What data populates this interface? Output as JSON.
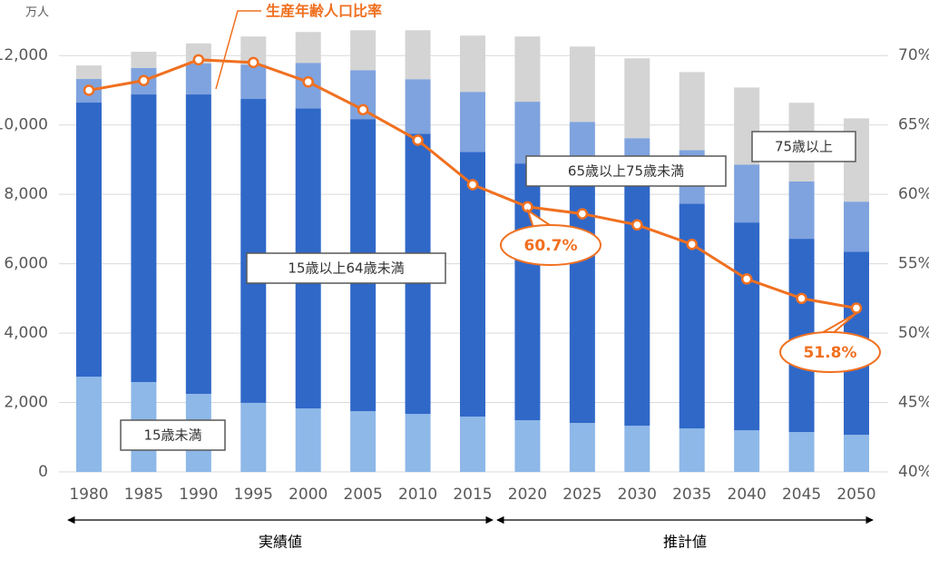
{
  "chart_data": {
    "type": "bar",
    "y_label": "万人",
    "categories": [
      "1980",
      "1985",
      "1990",
      "1995",
      "2000",
      "2005",
      "2010",
      "2015",
      "2020",
      "2025",
      "2030",
      "2035",
      "2040",
      "2045",
      "2050"
    ],
    "series": [
      {
        "name": "15歳未満",
        "color": "#8db8e8",
        "values": [
          2745,
          2590,
          2250,
          1990,
          1830,
          1750,
          1670,
          1595,
          1490,
          1410,
          1330,
          1255,
          1200,
          1150,
          1070
        ]
      },
      {
        "name": "15歳以上64歳未満",
        "color": "#3068c8",
        "values": [
          7900,
          8290,
          8630,
          8760,
          8650,
          8420,
          8080,
          7630,
          7400,
          7140,
          7030,
          6480,
          5990,
          5570,
          5280
        ]
      },
      {
        "name": "65歳以上75歳未満",
        "color": "#7fa3de",
        "values": [
          680,
          760,
          890,
          990,
          1310,
          1410,
          1570,
          1730,
          1780,
          1540,
          1260,
          1540,
          1670,
          1650,
          1440
        ]
      },
      {
        "name": "75歳以上",
        "color": "#d4d4d4",
        "values": [
          390,
          470,
          580,
          810,
          890,
          1150,
          1410,
          1620,
          1880,
          2170,
          2300,
          2250,
          2220,
          2270,
          2400
        ]
      },
      {
        "name": "生産年齢人口比率",
        "color": "#f07020",
        "axis": "y2",
        "values": [
          67.5,
          68.2,
          69.7,
          69.5,
          68.1,
          66.1,
          63.9,
          60.7,
          59.1,
          58.6,
          57.8,
          56.4,
          53.9,
          52.5,
          51.8
        ]
      }
    ],
    "ylim": [
      0,
      13000
    ],
    "yticks": [
      0,
      {
        "value": 2000,
        "label": "2,000"
      },
      {
        "value": 4000,
        "label": "4,000"
      },
      {
        "value": 6000,
        "label": "6,000"
      },
      {
        "value": 8000,
        "label": "8,000"
      },
      {
        "value": 10000,
        "label": "10,000"
      },
      {
        "value": 12000,
        "label": "12,000"
      }
    ],
    "y2lim": [
      40,
      72.5
    ],
    "y2ticks": [
      {
        "value": 40,
        "label": "40%"
      },
      {
        "value": 45,
        "label": "45%"
      },
      {
        "value": 50,
        "label": "50%"
      },
      {
        "value": 55,
        "label": "55%"
      },
      {
        "value": 60,
        "label": "60%"
      },
      {
        "value": 65,
        "label": "65%"
      },
      {
        "value": 70,
        "label": "70%"
      }
    ],
    "grid": true,
    "callouts": [
      "60.7%",
      "51.8%"
    ],
    "periods": [
      "実績値",
      "推計値"
    ]
  }
}
